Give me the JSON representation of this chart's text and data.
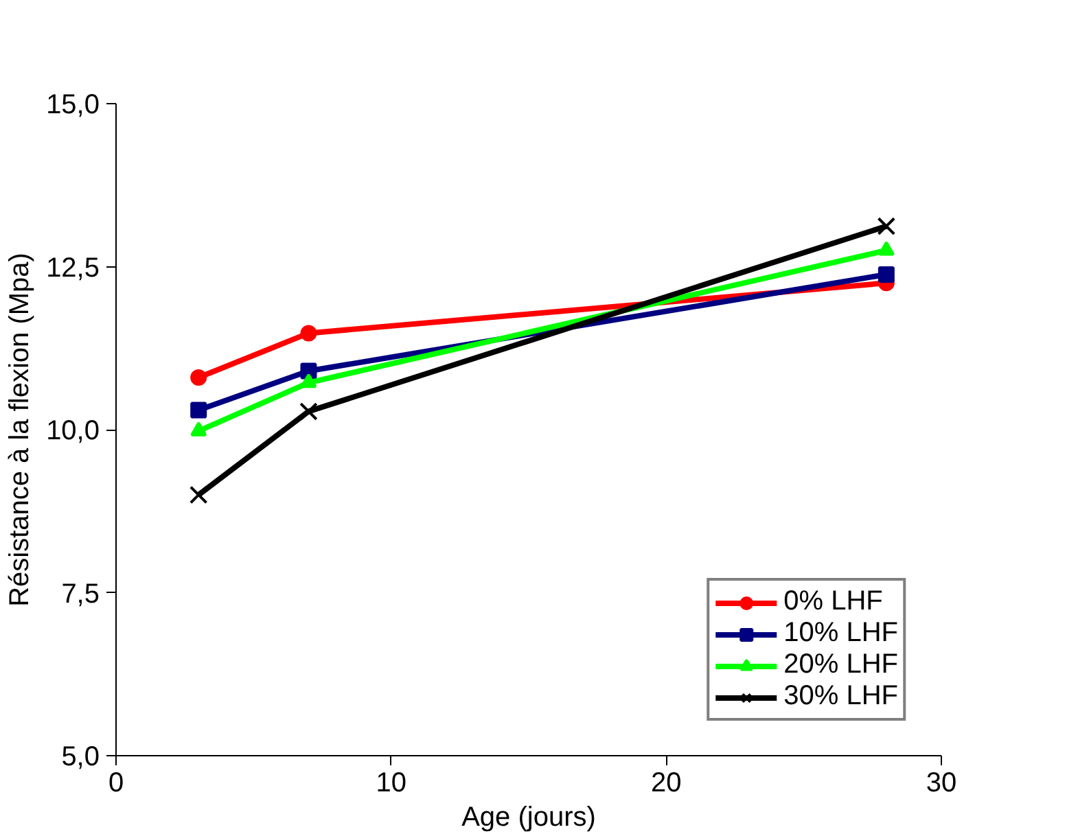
{
  "chart_data": {
    "type": "line",
    "xlabel": "Age (jours)",
    "ylabel": "Résistance à la flexion (Mpa)",
    "x": [
      3,
      7,
      28
    ],
    "series": [
      {
        "name": "0% LHF",
        "color": "#ff0000",
        "values": [
          10.8,
          11.48,
          12.25
        ],
        "marker": "circle"
      },
      {
        "name": "10% LHF",
        "color": "#000080",
        "values": [
          10.3,
          10.9,
          12.38
        ],
        "marker": "square"
      },
      {
        "name": "20% LHF",
        "color": "#00ff00",
        "values": [
          9.98,
          10.72,
          12.75
        ],
        "marker": "triangle"
      },
      {
        "name": "30% LHF",
        "color": "#000000",
        "values": [
          9.0,
          10.28,
          13.12
        ],
        "marker": "cross"
      }
    ],
    "xlim": [
      0,
      30
    ],
    "xticks": [
      0,
      10,
      20,
      30
    ],
    "ylim": [
      5,
      15
    ],
    "yticks": [
      {
        "value": 5,
        "label": "5,0"
      },
      {
        "value": 7.5,
        "label": "7,5"
      },
      {
        "value": 10,
        "label": "10,0"
      },
      {
        "value": 12.5,
        "label": "12,5"
      },
      {
        "value": 15,
        "label": "15,0"
      }
    ],
    "grid": false,
    "legend": "bottom right",
    "line_style": "solid"
  }
}
